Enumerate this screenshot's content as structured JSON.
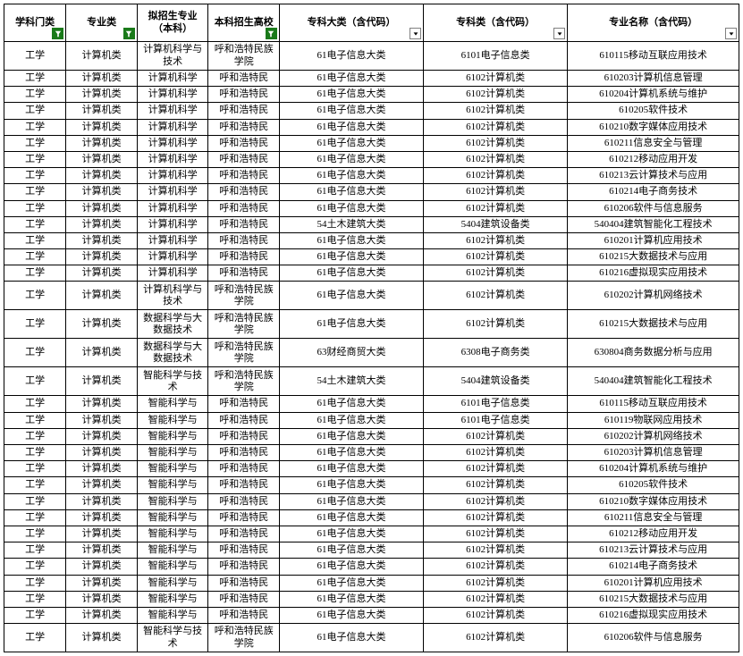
{
  "columns": [
    {
      "label": "学科门类",
      "filter": "active"
    },
    {
      "label": "专业类",
      "filter": "active"
    },
    {
      "label": "拟招生专业（本科）",
      "filter": "none"
    },
    {
      "label": "本科招生高校",
      "filter": "active"
    },
    {
      "label": "专科大类（含代码）",
      "filter": "dropdown"
    },
    {
      "label": "专科类（含代码）",
      "filter": "dropdown"
    },
    {
      "label": "专业名称（含代码）",
      "filter": "dropdown"
    }
  ],
  "rows": [
    {
      "tall": true,
      "c": [
        "工学",
        "计算机类",
        "计算机科学与技术",
        "呼和浩特民族学院",
        "61电子信息大类",
        "6101电子信息类",
        "610115移动互联应用技术"
      ]
    },
    {
      "c": [
        "工学",
        "计算机类",
        "计算机科学",
        "呼和浩特民",
        "61电子信息大类",
        "6102计算机类",
        "610203计算机信息管理"
      ]
    },
    {
      "c": [
        "工学",
        "计算机类",
        "计算机科学",
        "呼和浩特民",
        "61电子信息大类",
        "6102计算机类",
        "610204计算机系统与维护"
      ]
    },
    {
      "c": [
        "工学",
        "计算机类",
        "计算机科学",
        "呼和浩特民",
        "61电子信息大类",
        "6102计算机类",
        "610205软件技术"
      ]
    },
    {
      "c": [
        "工学",
        "计算机类",
        "计算机科学",
        "呼和浩特民",
        "61电子信息大类",
        "6102计算机类",
        "610210数字媒体应用技术"
      ]
    },
    {
      "c": [
        "工学",
        "计算机类",
        "计算机科学",
        "呼和浩特民",
        "61电子信息大类",
        "6102计算机类",
        "610211信息安全与管理"
      ]
    },
    {
      "c": [
        "工学",
        "计算机类",
        "计算机科学",
        "呼和浩特民",
        "61电子信息大类",
        "6102计算机类",
        "610212移动应用开发"
      ]
    },
    {
      "c": [
        "工学",
        "计算机类",
        "计算机科学",
        "呼和浩特民",
        "61电子信息大类",
        "6102计算机类",
        "610213云计算技术与应用"
      ]
    },
    {
      "c": [
        "工学",
        "计算机类",
        "计算机科学",
        "呼和浩特民",
        "61电子信息大类",
        "6102计算机类",
        "610214电子商务技术"
      ]
    },
    {
      "c": [
        "工学",
        "计算机类",
        "计算机科学",
        "呼和浩特民",
        "61电子信息大类",
        "6102计算机类",
        "610206软件与信息服务"
      ]
    },
    {
      "c": [
        "工学",
        "计算机类",
        "计算机科学",
        "呼和浩特民",
        "54土木建筑大类",
        "5404建筑设备类",
        "540404建筑智能化工程技术"
      ]
    },
    {
      "c": [
        "工学",
        "计算机类",
        "计算机科学",
        "呼和浩特民",
        "61电子信息大类",
        "6102计算机类",
        "610201计算机应用技术"
      ]
    },
    {
      "c": [
        "工学",
        "计算机类",
        "计算机科学",
        "呼和浩特民",
        "61电子信息大类",
        "6102计算机类",
        "610215大数据技术与应用"
      ]
    },
    {
      "c": [
        "工学",
        "计算机类",
        "计算机科学",
        "呼和浩特民",
        "61电子信息大类",
        "6102计算机类",
        "610216虚拟现实应用技术"
      ]
    },
    {
      "tall": true,
      "c": [
        "工学",
        "计算机类",
        "计算机科学与技术",
        "呼和浩特民族学院",
        "61电子信息大类",
        "6102计算机类",
        "610202计算机网络技术"
      ]
    },
    {
      "tall": true,
      "c": [
        "工学",
        "计算机类",
        "数据科学与大数据技术",
        "呼和浩特民族学院",
        "61电子信息大类",
        "6102计算机类",
        "610215大数据技术与应用"
      ]
    },
    {
      "tall": true,
      "c": [
        "工学",
        "计算机类",
        "数据科学与大数据技术",
        "呼和浩特民族学院",
        "63财经商贸大类",
        "6308电子商务类",
        "630804商务数据分析与应用"
      ]
    },
    {
      "tall": true,
      "c": [
        "工学",
        "计算机类",
        "智能科学与技术",
        "呼和浩特民族学院",
        "54土木建筑大类",
        "5404建筑设备类",
        "540404建筑智能化工程技术"
      ]
    },
    {
      "c": [
        "工学",
        "计算机类",
        "智能科学与",
        "呼和浩特民",
        "61电子信息大类",
        "6101电子信息类",
        "610115移动互联应用技术"
      ]
    },
    {
      "c": [
        "工学",
        "计算机类",
        "智能科学与",
        "呼和浩特民",
        "61电子信息大类",
        "6101电子信息类",
        "610119物联网应用技术"
      ]
    },
    {
      "c": [
        "工学",
        "计算机类",
        "智能科学与",
        "呼和浩特民",
        "61电子信息大类",
        "6102计算机类",
        "610202计算机网络技术"
      ]
    },
    {
      "c": [
        "工学",
        "计算机类",
        "智能科学与",
        "呼和浩特民",
        "61电子信息大类",
        "6102计算机类",
        "610203计算机信息管理"
      ]
    },
    {
      "c": [
        "工学",
        "计算机类",
        "智能科学与",
        "呼和浩特民",
        "61电子信息大类",
        "6102计算机类",
        "610204计算机系统与维护"
      ]
    },
    {
      "c": [
        "工学",
        "计算机类",
        "智能科学与",
        "呼和浩特民",
        "61电子信息大类",
        "6102计算机类",
        "610205软件技术"
      ]
    },
    {
      "c": [
        "工学",
        "计算机类",
        "智能科学与",
        "呼和浩特民",
        "61电子信息大类",
        "6102计算机类",
        "610210数字媒体应用技术"
      ]
    },
    {
      "c": [
        "工学",
        "计算机类",
        "智能科学与",
        "呼和浩特民",
        "61电子信息大类",
        "6102计算机类",
        "610211信息安全与管理"
      ]
    },
    {
      "c": [
        "工学",
        "计算机类",
        "智能科学与",
        "呼和浩特民",
        "61电子信息大类",
        "6102计算机类",
        "610212移动应用开发"
      ]
    },
    {
      "c": [
        "工学",
        "计算机类",
        "智能科学与",
        "呼和浩特民",
        "61电子信息大类",
        "6102计算机类",
        "610213云计算技术与应用"
      ]
    },
    {
      "c": [
        "工学",
        "计算机类",
        "智能科学与",
        "呼和浩特民",
        "61电子信息大类",
        "6102计算机类",
        "610214电子商务技术"
      ]
    },
    {
      "c": [
        "工学",
        "计算机类",
        "智能科学与",
        "呼和浩特民",
        "61电子信息大类",
        "6102计算机类",
        "610201计算机应用技术"
      ]
    },
    {
      "c": [
        "工学",
        "计算机类",
        "智能科学与",
        "呼和浩特民",
        "61电子信息大类",
        "6102计算机类",
        "610215大数据技术与应用"
      ]
    },
    {
      "c": [
        "工学",
        "计算机类",
        "智能科学与",
        "呼和浩特民",
        "61电子信息大类",
        "6102计算机类",
        "610216虚拟现实应用技术"
      ]
    },
    {
      "tall": true,
      "c": [
        "工学",
        "计算机类",
        "智能科学与技术",
        "呼和浩特民族学院",
        "61电子信息大类",
        "6102计算机类",
        "610206软件与信息服务"
      ]
    }
  ],
  "style": {
    "border_color": "#000000",
    "bg_color": "#ffffff",
    "filter_active_bg": "#1a7a1a",
    "filter_border": "#808080",
    "font_family": "SimSun",
    "font_size_pt": 9
  }
}
